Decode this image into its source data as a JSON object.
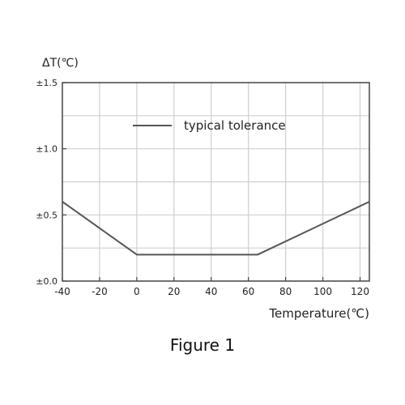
{
  "caption": "Figure 1",
  "chart_data": {
    "type": "line",
    "ylabel": "ΔT(℃)",
    "xlabel": "Temperature(℃)",
    "xlim": [
      -40,
      125
    ],
    "ylim": [
      0,
      1.5
    ],
    "x_ticks": [
      -40,
      -20,
      0,
      20,
      40,
      60,
      80,
      100,
      120
    ],
    "y_ticks": [
      {
        "value": 0,
        "label": "±0.0"
      },
      {
        "value": 0.5,
        "label": "±0.5"
      },
      {
        "value": 1.0,
        "label": "±1.0"
      },
      {
        "value": 1.5,
        "label": "±1.5"
      }
    ],
    "grid": true,
    "legend_position": "top-center",
    "series": [
      {
        "name": "typical tolerance",
        "color": "#555555",
        "x": [
          -40,
          0,
          65,
          125
        ],
        "y": [
          0.6,
          0.2,
          0.2,
          0.6
        ]
      }
    ]
  }
}
